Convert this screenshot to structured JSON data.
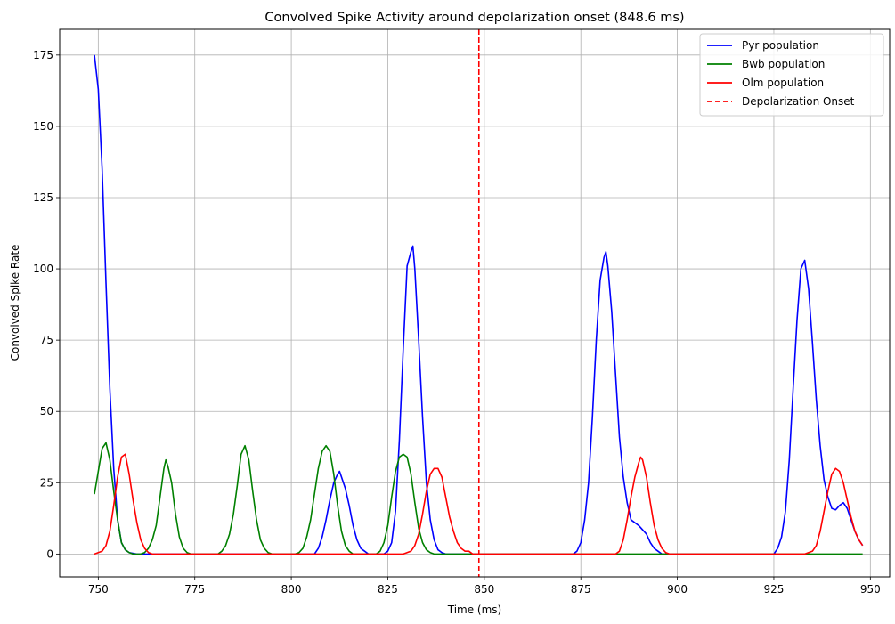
{
  "chart_data": {
    "type": "line",
    "title": "Convolved Spike Activity around depolarization onset (848.6 ms)",
    "xlabel": "Time (ms)",
    "ylabel": "Convolved Spike Rate",
    "xlim": [
      740,
      955
    ],
    "ylim": [
      -8,
      184
    ],
    "xticks": [
      750,
      775,
      800,
      825,
      850,
      875,
      900,
      925,
      950
    ],
    "yticks": [
      0,
      25,
      50,
      75,
      100,
      125,
      150,
      175
    ],
    "grid": true,
    "legend_position": "top-right",
    "vline": {
      "x": 848.6,
      "label": "Depolarization Onset",
      "color": "#ff0000",
      "style": "dashed"
    },
    "series": [
      {
        "name": "Pyr population",
        "color": "#0000ff",
        "points": [
          [
            749,
            175
          ],
          [
            750,
            163
          ],
          [
            751,
            135
          ],
          [
            752,
            95
          ],
          [
            753,
            58
          ],
          [
            754,
            30
          ],
          [
            755,
            12
          ],
          [
            756,
            4
          ],
          [
            757,
            1.5
          ],
          [
            758,
            0.5
          ],
          [
            760,
            0
          ],
          [
            806,
            0
          ],
          [
            807,
            2
          ],
          [
            808,
            6
          ],
          [
            809,
            12
          ],
          [
            810,
            19
          ],
          [
            811,
            25
          ],
          [
            812,
            28
          ],
          [
            812.5,
            29
          ],
          [
            813,
            27
          ],
          [
            814,
            23
          ],
          [
            815,
            17
          ],
          [
            816,
            10
          ],
          [
            817,
            5
          ],
          [
            818,
            2
          ],
          [
            819,
            1
          ],
          [
            820,
            0
          ],
          [
            824,
            0
          ],
          [
            825,
            1
          ],
          [
            826,
            4
          ],
          [
            827,
            15
          ],
          [
            828,
            40
          ],
          [
            829,
            72
          ],
          [
            830,
            101
          ],
          [
            831,
            106
          ],
          [
            831.5,
            108
          ],
          [
            832,
            100
          ],
          [
            833,
            75
          ],
          [
            834,
            48
          ],
          [
            835,
            25
          ],
          [
            836,
            12
          ],
          [
            837,
            5
          ],
          [
            838,
            1.5
          ],
          [
            839,
            0.5
          ],
          [
            840,
            0
          ],
          [
            873,
            0
          ],
          [
            874,
            1
          ],
          [
            875,
            4
          ],
          [
            876,
            12
          ],
          [
            877,
            25
          ],
          [
            878,
            48
          ],
          [
            879,
            75
          ],
          [
            880,
            96
          ],
          [
            881,
            104
          ],
          [
            881.5,
            106
          ],
          [
            882,
            101
          ],
          [
            883,
            85
          ],
          [
            884,
            63
          ],
          [
            885,
            41
          ],
          [
            886,
            27
          ],
          [
            887,
            18
          ],
          [
            888,
            12
          ],
          [
            890,
            10
          ],
          [
            892,
            7
          ],
          [
            893,
            4
          ],
          [
            894,
            2
          ],
          [
            895,
            1
          ],
          [
            896,
            0
          ],
          [
            925,
            0
          ],
          [
            926,
            2
          ],
          [
            927,
            6
          ],
          [
            928,
            15
          ],
          [
            929,
            33
          ],
          [
            930,
            58
          ],
          [
            931,
            82
          ],
          [
            932,
            100
          ],
          [
            933,
            103
          ],
          [
            934,
            93
          ],
          [
            935,
            74
          ],
          [
            936,
            54
          ],
          [
            937,
            38
          ],
          [
            938,
            26
          ],
          [
            939,
            20
          ],
          [
            940,
            16
          ],
          [
            941,
            15.5
          ],
          [
            942,
            17
          ],
          [
            943,
            18
          ],
          [
            944,
            16
          ],
          [
            945,
            12
          ],
          [
            946,
            8
          ],
          [
            947,
            5
          ],
          [
            948,
            3
          ]
        ]
      },
      {
        "name": "Bwb population",
        "color": "#008000",
        "points": [
          [
            749,
            21
          ],
          [
            750,
            29
          ],
          [
            751,
            37
          ],
          [
            752,
            39
          ],
          [
            753,
            33
          ],
          [
            754,
            22
          ],
          [
            755,
            12
          ],
          [
            756,
            4
          ],
          [
            757,
            1.5
          ],
          [
            758,
            0.5
          ],
          [
            759,
            0
          ],
          [
            761,
            0
          ],
          [
            762,
            0.5
          ],
          [
            763,
            2
          ],
          [
            764,
            5
          ],
          [
            765,
            10
          ],
          [
            766,
            20
          ],
          [
            767,
            30
          ],
          [
            767.5,
            33
          ],
          [
            768,
            31
          ],
          [
            769,
            25
          ],
          [
            770,
            14
          ],
          [
            771,
            6
          ],
          [
            772,
            2
          ],
          [
            773,
            0.5
          ],
          [
            774,
            0
          ],
          [
            781,
            0
          ],
          [
            782,
            1
          ],
          [
            783,
            3
          ],
          [
            784,
            7
          ],
          [
            785,
            14
          ],
          [
            786,
            24
          ],
          [
            787,
            35
          ],
          [
            788,
            38
          ],
          [
            789,
            33
          ],
          [
            790,
            22
          ],
          [
            791,
            12
          ],
          [
            792,
            5
          ],
          [
            793,
            2
          ],
          [
            794,
            0.5
          ],
          [
            795,
            0
          ],
          [
            801,
            0
          ],
          [
            802,
            0.5
          ],
          [
            803,
            2
          ],
          [
            804,
            6
          ],
          [
            805,
            12
          ],
          [
            806,
            21
          ],
          [
            807,
            30
          ],
          [
            808,
            36
          ],
          [
            809,
            38
          ],
          [
            810,
            36
          ],
          [
            811,
            28
          ],
          [
            812,
            17
          ],
          [
            813,
            8
          ],
          [
            814,
            3
          ],
          [
            815,
            1
          ],
          [
            816,
            0
          ],
          [
            822,
            0
          ],
          [
            823,
            1
          ],
          [
            824,
            4
          ],
          [
            825,
            10
          ],
          [
            826,
            20
          ],
          [
            827,
            29
          ],
          [
            828,
            34
          ],
          [
            829,
            35
          ],
          [
            830,
            34
          ],
          [
            831,
            28
          ],
          [
            832,
            18
          ],
          [
            833,
            9
          ],
          [
            834,
            4
          ],
          [
            835,
            1.5
          ],
          [
            836,
            0.5
          ],
          [
            837,
            0
          ],
          [
            948,
            0
          ]
        ]
      },
      {
        "name": "Olm population",
        "color": "#ff0000",
        "points": [
          [
            749,
            0
          ],
          [
            750,
            0.5
          ],
          [
            751,
            1
          ],
          [
            752,
            3
          ],
          [
            753,
            8
          ],
          [
            754,
            17
          ],
          [
            755,
            27
          ],
          [
            756,
            34
          ],
          [
            757,
            35
          ],
          [
            758,
            28
          ],
          [
            759,
            19
          ],
          [
            760,
            11
          ],
          [
            761,
            5
          ],
          [
            762,
            2
          ],
          [
            763,
            0.5
          ],
          [
            764,
            0
          ],
          [
            829,
            0
          ],
          [
            830,
            0.5
          ],
          [
            831,
            1
          ],
          [
            832,
            3
          ],
          [
            833,
            7
          ],
          [
            834,
            14
          ],
          [
            835,
            22
          ],
          [
            836,
            28
          ],
          [
            837,
            30
          ],
          [
            838,
            30
          ],
          [
            839,
            27
          ],
          [
            840,
            20
          ],
          [
            841,
            13
          ],
          [
            842,
            8
          ],
          [
            843,
            4
          ],
          [
            844,
            2
          ],
          [
            845,
            1
          ],
          [
            846,
            1
          ],
          [
            847,
            0
          ],
          [
            884,
            0
          ],
          [
            885,
            1
          ],
          [
            886,
            5
          ],
          [
            887,
            12
          ],
          [
            888,
            20
          ],
          [
            889,
            27
          ],
          [
            890,
            32
          ],
          [
            890.5,
            34
          ],
          [
            891,
            33
          ],
          [
            892,
            27
          ],
          [
            893,
            18
          ],
          [
            894,
            10
          ],
          [
            895,
            5
          ],
          [
            896,
            2
          ],
          [
            897,
            0.5
          ],
          [
            898,
            0
          ],
          [
            933,
            0
          ],
          [
            934,
            0.5
          ],
          [
            935,
            1
          ],
          [
            936,
            3
          ],
          [
            937,
            8
          ],
          [
            938,
            15
          ],
          [
            939,
            22
          ],
          [
            940,
            28
          ],
          [
            941,
            30
          ],
          [
            942,
            29
          ],
          [
            943,
            25
          ],
          [
            944,
            19
          ],
          [
            945,
            13
          ],
          [
            946,
            8
          ],
          [
            947,
            5
          ],
          [
            948,
            3
          ]
        ]
      }
    ]
  }
}
